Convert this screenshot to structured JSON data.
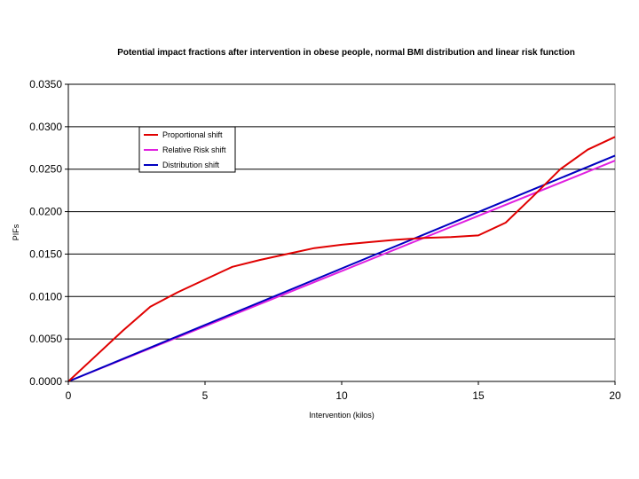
{
  "chart_data": {
    "type": "line",
    "title": "Potential impact fractions after intervention in obese people, normal BMI distribution and linear risk function",
    "xlabel": "Intervention (kilos)",
    "ylabel": "PIFs",
    "xlim": [
      0,
      20
    ],
    "ylim": [
      0,
      0.035
    ],
    "x_ticks": [
      "0",
      "5",
      "10",
      "15",
      "20"
    ],
    "y_ticks": [
      "0.0000",
      "0.0050",
      "0.0100",
      "0.0150",
      "0.0200",
      "0.0250",
      "0.0300",
      "0.0350"
    ],
    "grid": "horizontal",
    "legend_position": "top-left",
    "series": [
      {
        "name": "Proportional shift",
        "color": "#e00000",
        "points": [
          [
            0,
            0
          ],
          [
            1,
            0.003
          ],
          [
            2,
            0.006
          ],
          [
            3,
            0.0088
          ],
          [
            4,
            0.0105
          ],
          [
            5,
            0.012
          ],
          [
            6,
            0.0135
          ],
          [
            7,
            0.0143
          ],
          [
            8,
            0.015
          ],
          [
            9,
            0.0157
          ],
          [
            10,
            0.0161
          ],
          [
            11,
            0.0164
          ],
          [
            12,
            0.0167
          ],
          [
            13,
            0.0169
          ],
          [
            14,
            0.017
          ],
          [
            15,
            0.0172
          ],
          [
            16,
            0.0187
          ],
          [
            17,
            0.0218
          ],
          [
            18,
            0.025
          ],
          [
            19,
            0.0273
          ],
          [
            20,
            0.0288
          ]
        ]
      },
      {
        "name": "Relative Risk shift",
        "color": "#e020e0",
        "points": [
          [
            0,
            0
          ],
          [
            20,
            0.026
          ]
        ]
      },
      {
        "name": "Distribution shift",
        "color": "#0000c0",
        "points": [
          [
            0,
            0
          ],
          [
            20,
            0.0266
          ]
        ]
      }
    ]
  }
}
